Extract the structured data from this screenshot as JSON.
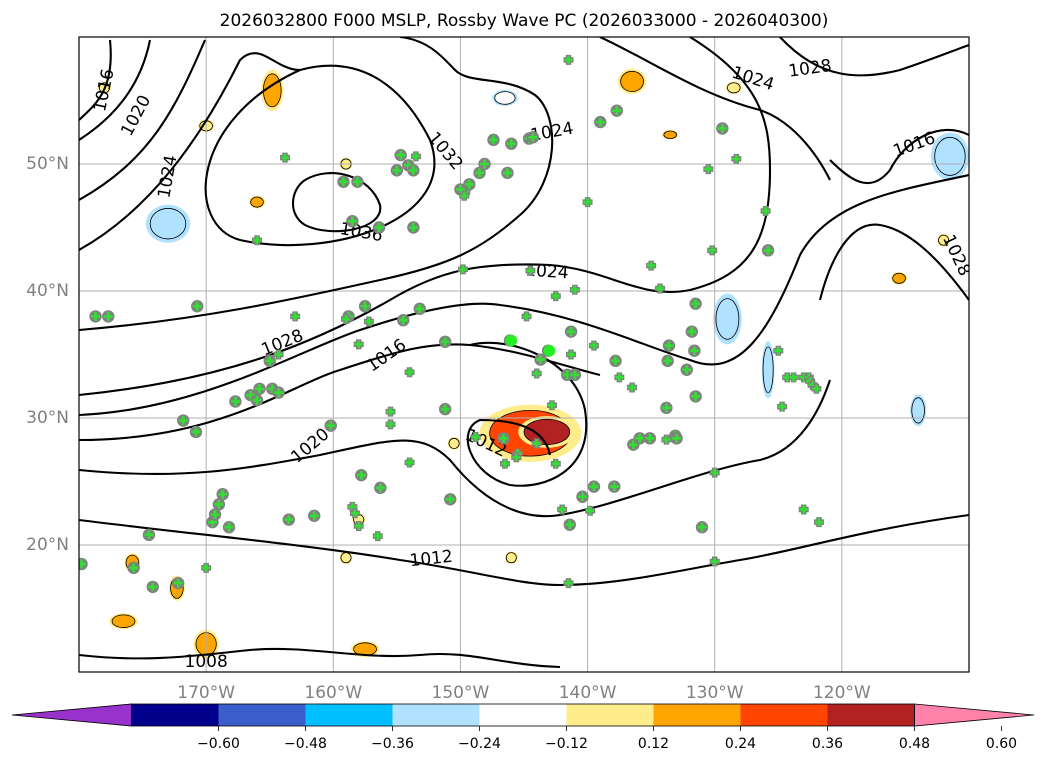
{
  "chart_data": {
    "type": "map-contour",
    "title": "2026032800 F000 MSLP, Rossby Wave PC (2026033000 - 2026040300)",
    "map_extent": {
      "lon": [
        -180,
        -110
      ],
      "lat": [
        10,
        60
      ]
    },
    "lon_ticks": [
      {
        "value": -170,
        "label": "170°W"
      },
      {
        "value": -160,
        "label": "160°W"
      },
      {
        "value": -150,
        "label": "150°W"
      },
      {
        "value": -140,
        "label": "140°W"
      },
      {
        "value": -130,
        "label": "130°W"
      },
      {
        "value": -120,
        "label": "120°W"
      }
    ],
    "lat_ticks": [
      {
        "value": 20,
        "label": "20°N"
      },
      {
        "value": 30,
        "label": "30°N"
      },
      {
        "value": 40,
        "label": "40°N"
      },
      {
        "value": 50,
        "label": "50°N"
      }
    ],
    "grid": true,
    "mslp_contour_labels": [
      {
        "text": "1016",
        "lon": -178.0,
        "lat": 55.8,
        "rot": -78
      },
      {
        "text": "1020",
        "lon": -175.5,
        "lat": 53.8,
        "rot": -62
      },
      {
        "text": "1024",
        "lon": -173.0,
        "lat": 49.0,
        "rot": -80
      },
      {
        "text": "1032",
        "lon": -151.2,
        "lat": 51.0,
        "rot": 50
      },
      {
        "text": "1036",
        "lon": -157.8,
        "lat": 44.6,
        "rot": 10
      },
      {
        "text": "1024",
        "lon": -142.8,
        "lat": 52.5,
        "rot": -10
      },
      {
        "text": "1024",
        "lon": -127.0,
        "lat": 56.7,
        "rot": 18
      },
      {
        "text": "1028",
        "lon": -122.5,
        "lat": 57.5,
        "rot": -8
      },
      {
        "text": "1016",
        "lon": -114.3,
        "lat": 51.5,
        "rot": -20
      },
      {
        "text": "1028",
        "lon": -111.0,
        "lat": 42.8,
        "rot": 65
      },
      {
        "text": "1024",
        "lon": -143.2,
        "lat": 41.5,
        "rot": 4
      },
      {
        "text": "1028",
        "lon": -164.0,
        "lat": 35.9,
        "rot": -22
      },
      {
        "text": "1016",
        "lon": -155.8,
        "lat": 34.9,
        "rot": -35
      },
      {
        "text": "1020",
        "lon": -161.8,
        "lat": 27.8,
        "rot": -40
      },
      {
        "text": "1012",
        "lon": -148.0,
        "lat": 28.0,
        "rot": 25
      },
      {
        "text": "1012",
        "lon": -152.3,
        "lat": 18.9,
        "rot": -6
      },
      {
        "text": "1008",
        "lon": -170.0,
        "lat": 10.8,
        "rot": 0
      }
    ],
    "pc_anomaly_patches": [
      {
        "lon": -144.5,
        "lat": 28.8,
        "rx": 3.2,
        "ry": 1.8,
        "level": 0.36
      },
      {
        "lon": -143.2,
        "lat": 28.9,
        "rx": 1.8,
        "ry": 1.0,
        "level": 0.48
      },
      {
        "lon": -173.0,
        "lat": 45.3,
        "rx": 1.4,
        "ry": 1.2,
        "level": -0.24
      },
      {
        "lon": -129.0,
        "lat": 37.8,
        "rx": 0.9,
        "ry": 1.6,
        "level": -0.24
      },
      {
        "lon": -125.8,
        "lat": 33.8,
        "rx": 0.4,
        "ry": 1.8,
        "level": -0.24
      },
      {
        "lon": -111.5,
        "lat": 50.6,
        "rx": 1.2,
        "ry": 1.5,
        "level": -0.24
      },
      {
        "lon": -114.0,
        "lat": 30.6,
        "rx": 0.5,
        "ry": 1.0,
        "level": -0.24
      },
      {
        "lon": -146.5,
        "lat": 55.2,
        "rx": 0.8,
        "ry": 0.5,
        "level": -0.12
      },
      {
        "lon": -178.0,
        "lat": 56.0,
        "rx": 0.4,
        "ry": 0.4,
        "level": 0.12
      },
      {
        "lon": -170.0,
        "lat": 53.0,
        "rx": 0.5,
        "ry": 0.4,
        "level": 0.12
      },
      {
        "lon": -159.0,
        "lat": 50.0,
        "rx": 0.4,
        "ry": 0.4,
        "level": 0.12
      },
      {
        "lon": -166.0,
        "lat": 47.0,
        "rx": 0.5,
        "ry": 0.4,
        "level": 0.24
      },
      {
        "lon": -164.8,
        "lat": 55.8,
        "rx": 0.7,
        "ry": 1.3,
        "level": 0.24
      },
      {
        "lon": -136.5,
        "lat": 56.5,
        "rx": 0.9,
        "ry": 0.8,
        "level": 0.24
      },
      {
        "lon": -128.5,
        "lat": 56.0,
        "rx": 0.5,
        "ry": 0.4,
        "level": 0.12
      },
      {
        "lon": -133.5,
        "lat": 52.3,
        "rx": 0.5,
        "ry": 0.3,
        "level": 0.24
      },
      {
        "lon": -150.5,
        "lat": 28.0,
        "rx": 0.4,
        "ry": 0.4,
        "level": 0.12
      },
      {
        "lon": -175.8,
        "lat": 18.6,
        "rx": 0.5,
        "ry": 0.6,
        "level": 0.24
      },
      {
        "lon": -172.3,
        "lat": 16.6,
        "rx": 0.5,
        "ry": 0.8,
        "level": 0.24
      },
      {
        "lon": -176.5,
        "lat": 14.0,
        "rx": 0.9,
        "ry": 0.5,
        "level": 0.24
      },
      {
        "lon": -170.0,
        "lat": 12.2,
        "rx": 0.8,
        "ry": 0.9,
        "level": 0.24
      },
      {
        "lon": -157.5,
        "lat": 11.8,
        "rx": 0.9,
        "ry": 0.5,
        "level": 0.24
      },
      {
        "lon": -159.0,
        "lat": 19.0,
        "rx": 0.4,
        "ry": 0.4,
        "level": 0.12
      },
      {
        "lon": -146.0,
        "lat": 19.0,
        "rx": 0.4,
        "ry": 0.4,
        "level": 0.12
      },
      {
        "lon": -158.0,
        "lat": 22.0,
        "rx": 0.4,
        "ry": 0.4,
        "level": 0.12
      },
      {
        "lon": -115.5,
        "lat": 41.0,
        "rx": 0.5,
        "ry": 0.4,
        "level": 0.24
      },
      {
        "lon": -112.0,
        "lat": 44.0,
        "rx": 0.4,
        "ry": 0.4,
        "level": 0.12
      }
    ],
    "observation_stations": [
      [
        -179.8,
        18.5
      ],
      [
        -178.7,
        38.0
      ],
      [
        -177.7,
        38.0
      ],
      [
        -175.7,
        18.2
      ],
      [
        -174.5,
        20.8
      ],
      [
        -174.2,
        16.7
      ],
      [
        -172.2,
        17.0
      ],
      [
        -171.8,
        29.8
      ],
      [
        -170.8,
        28.9
      ],
      [
        -170.7,
        38.8
      ],
      [
        -169.5,
        21.8
      ],
      [
        -169.3,
        22.4
      ],
      [
        -169.0,
        23.2
      ],
      [
        -168.7,
        24.0
      ],
      [
        -168.2,
        21.4
      ],
      [
        -167.7,
        31.3
      ],
      [
        -166.5,
        31.8
      ],
      [
        -166.0,
        31.4
      ],
      [
        -165.8,
        32.3
      ],
      [
        -165.0,
        34.5
      ],
      [
        -164.8,
        32.3
      ],
      [
        -164.3,
        32.0
      ],
      [
        -163.5,
        22.0
      ],
      [
        -161.5,
        22.3
      ],
      [
        -160.2,
        29.4
      ],
      [
        -159.2,
        48.6
      ],
      [
        -158.8,
        38.0
      ],
      [
        -158.5,
        45.5
      ],
      [
        -158.1,
        48.6
      ],
      [
        -157.8,
        25.5
      ],
      [
        -157.5,
        38.8
      ],
      [
        -156.3,
        24.5
      ],
      [
        -155.0,
        49.5
      ],
      [
        -154.7,
        50.7
      ],
      [
        -154.5,
        37.7
      ],
      [
        -154.1,
        49.9
      ],
      [
        -153.7,
        45.0
      ],
      [
        -153.7,
        49.5
      ],
      [
        -153.2,
        38.6
      ],
      [
        -151.2,
        36.0
      ],
      [
        -151.2,
        30.7
      ],
      [
        -150.8,
        23.6
      ],
      [
        -149.7,
        47.8
      ],
      [
        -149.3,
        48.4
      ],
      [
        -148.5,
        49.3
      ],
      [
        -148.1,
        50.0
      ],
      [
        -147.4,
        51.9
      ],
      [
        -146.6,
        28.4
      ],
      [
        -146.3,
        49.3
      ],
      [
        -146.1,
        36.1
      ],
      [
        -146.0,
        51.6
      ],
      [
        -144.6,
        52.0
      ],
      [
        -144.3,
        52.1
      ],
      [
        -143.7,
        34.6
      ],
      [
        -143.1,
        35.3
      ],
      [
        -141.6,
        33.4
      ],
      [
        -141.4,
        21.6
      ],
      [
        -141.3,
        36.8
      ],
      [
        -141.0,
        33.4
      ],
      [
        -140.4,
        23.8
      ],
      [
        -139.5,
        24.6
      ],
      [
        -139.0,
        53.3
      ],
      [
        -137.9,
        24.6
      ],
      [
        -137.8,
        34.5
      ],
      [
        -137.7,
        54.2
      ],
      [
        -136.4,
        27.9
      ],
      [
        -135.9,
        28.4
      ],
      [
        -135.1,
        28.4
      ],
      [
        -133.8,
        30.8
      ],
      [
        -133.7,
        34.5
      ],
      [
        -133.6,
        35.7
      ],
      [
        -133.1,
        28.6
      ],
      [
        -133.0,
        28.4
      ],
      [
        -132.2,
        33.8
      ],
      [
        -131.8,
        36.8
      ],
      [
        -131.6,
        35.3
      ],
      [
        -131.5,
        31.7
      ],
      [
        -131.5,
        39.0
      ],
      [
        -131.0,
        21.4
      ],
      [
        -129.4,
        52.8
      ],
      [
        -125.8,
        43.2
      ],
      [
        -156.4,
        45.0
      ],
      [
        -150.0,
        48.0
      ]
    ],
    "station_crosses": [
      [
        -158.5,
        23.0
      ],
      [
        -158.3,
        22.5
      ],
      [
        -158.0,
        21.5
      ],
      [
        -156.5,
        20.7
      ],
      [
        -154.0,
        26.5
      ],
      [
        -155.5,
        30.5
      ],
      [
        -155.5,
        29.5
      ],
      [
        -154.0,
        33.6
      ],
      [
        -158.0,
        35.8
      ],
      [
        -159.0,
        37.8
      ],
      [
        -157.2,
        37.6
      ],
      [
        -163.0,
        38.0
      ],
      [
        -164.3,
        35.0
      ],
      [
        -166.0,
        44.0
      ],
      [
        -163.8,
        50.5
      ],
      [
        -153.5,
        50.6
      ],
      [
        -149.8,
        41.7
      ],
      [
        -149.7,
        47.5
      ],
      [
        -146.5,
        26.4
      ],
      [
        -145.6,
        27.0
      ],
      [
        -144.0,
        33.5
      ],
      [
        -144.5,
        41.6
      ],
      [
        -144.0,
        28.0
      ],
      [
        -142.8,
        31.0
      ],
      [
        -145.5,
        27.2
      ],
      [
        -145.6,
        26.9
      ],
      [
        -142.5,
        26.4
      ],
      [
        -142.0,
        22.8
      ],
      [
        -141.5,
        17.0
      ],
      [
        -142.5,
        39.6
      ],
      [
        -144.8,
        38.0
      ],
      [
        -141.3,
        35.0
      ],
      [
        -141.0,
        40.1
      ],
      [
        -139.8,
        22.7
      ],
      [
        -139.5,
        35.7
      ],
      [
        -137.5,
        33.2
      ],
      [
        -136.5,
        32.4
      ],
      [
        -135.0,
        42.0
      ],
      [
        -134.3,
        40.2
      ],
      [
        -133.8,
        28.3
      ],
      [
        -130.5,
        49.6
      ],
      [
        -130.2,
        43.2
      ],
      [
        -130.0,
        25.7
      ],
      [
        -130.0,
        18.7
      ],
      [
        -128.3,
        50.4
      ],
      [
        -126.0,
        46.3
      ],
      [
        -125.0,
        35.3
      ],
      [
        -124.3,
        33.2
      ],
      [
        -123.8,
        33.2
      ],
      [
        -123.0,
        33.2
      ],
      [
        -122.6,
        33.2
      ],
      [
        -122.5,
        32.9
      ],
      [
        -122.3,
        32.6
      ],
      [
        -122.0,
        32.3
      ],
      [
        -124.7,
        30.9
      ],
      [
        -123.0,
        22.8
      ],
      [
        -121.8,
        21.8
      ],
      [
        -170.0,
        18.2
      ],
      [
        -141.5,
        58.2
      ],
      [
        -140.0,
        47.0
      ],
      [
        -148.8,
        28.5
      ]
    ],
    "bright_markers": [
      [
        -146.0,
        36.1
      ],
      [
        -143.0,
        35.3
      ]
    ],
    "colorbar": {
      "colors": [
        "#9932cc",
        "#00008b",
        "#3a5fcd",
        "#00bfff",
        "#b0e2ff",
        "#ffffff",
        "#ffec8b",
        "#ffa500",
        "#ff4500",
        "#b22222",
        "#ff82ab"
      ],
      "levels": [
        -0.6,
        -0.48,
        -0.36,
        -0.24,
        -0.12,
        0.12,
        0.24,
        0.36,
        0.48,
        0.6
      ],
      "tick_labels": [
        "−0.60",
        "−0.48",
        "−0.36",
        "−0.24",
        "−0.12",
        "0.12",
        "0.24",
        "0.36",
        "0.48",
        "0.60"
      ],
      "extend": "both"
    }
  }
}
